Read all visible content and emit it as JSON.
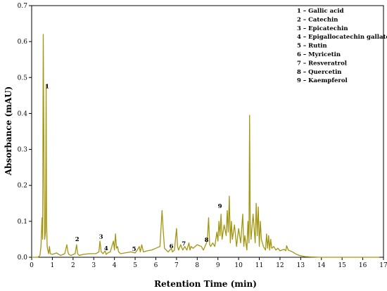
{
  "chart_data": {
    "type": "line",
    "xlabel": "Retention Time (min)",
    "ylabel": "Absorbance (mAU)",
    "xlim": [
      0,
      17
    ],
    "ylim": [
      0,
      0.7
    ],
    "xticks": [
      0,
      1,
      2,
      3,
      4,
      5,
      6,
      7,
      8,
      9,
      10,
      11,
      12,
      13,
      14,
      15,
      16,
      17
    ],
    "yticks": [
      0.0,
      0.1,
      0.2,
      0.3,
      0.4,
      0.5,
      0.6,
      0.7
    ],
    "line_color": "#a39613",
    "grid": false,
    "legend_position": "top-right",
    "legend": [
      "1 – Gallic acid",
      "2 – Catechin",
      "3 – Epicatechin",
      "4 – Epigallocatechin gallate",
      "5 – Rutin",
      "6 – Myricetin",
      "7 – Resveratrol",
      "8 – Quercetin",
      "9 – Kaempferol"
    ],
    "peak_labels": [
      {
        "text": "1",
        "x": 0.75,
        "y": 0.47
      },
      {
        "text": "2",
        "x": 2.2,
        "y": 0.045
      },
      {
        "text": "3",
        "x": 3.35,
        "y": 0.052
      },
      {
        "text": "4",
        "x": 3.6,
        "y": 0.02
      },
      {
        "text": "5",
        "x": 4.95,
        "y": 0.018
      },
      {
        "text": "6",
        "x": 6.75,
        "y": 0.025
      },
      {
        "text": "7",
        "x": 7.35,
        "y": 0.032
      },
      {
        "text": "8",
        "x": 8.45,
        "y": 0.043
      },
      {
        "text": "9",
        "x": 9.1,
        "y": 0.137
      }
    ],
    "series": [
      {
        "x": [
          0,
          0.3,
          0.4,
          0.45,
          0.5,
          0.53,
          0.56,
          0.6,
          0.63,
          0.67,
          0.7,
          0.72,
          0.75,
          0.78,
          0.82,
          0.86,
          0.9,
          1.0,
          1.2,
          1.4,
          1.6,
          1.7,
          1.75,
          1.8,
          1.9,
          2.1,
          2.17,
          2.22,
          2.3,
          2.5,
          2.8,
          3.1,
          3.25,
          3.3,
          3.36,
          3.45,
          3.55,
          3.6,
          3.68,
          3.8,
          3.95,
          4.0,
          4.05,
          4.1,
          4.15,
          4.2,
          4.3,
          4.5,
          4.8,
          5.0,
          5.1,
          5.2,
          5.25,
          5.32,
          5.4,
          5.6,
          5.8,
          6.0,
          6.2,
          6.3,
          6.35,
          6.42,
          6.5,
          6.6,
          6.75,
          6.8,
          6.9,
          7.0,
          7.05,
          7.1,
          7.2,
          7.3,
          7.35,
          7.4,
          7.5,
          7.6,
          7.65,
          7.7,
          7.8,
          8.0,
          8.2,
          8.3,
          8.45,
          8.5,
          8.55,
          8.6,
          8.65,
          8.75,
          8.85,
          8.95,
          9.0,
          9.05,
          9.1,
          9.15,
          9.2,
          9.3,
          9.4,
          9.45,
          9.5,
          9.55,
          9.6,
          9.65,
          9.7,
          9.8,
          9.9,
          10.0,
          10.1,
          10.2,
          10.25,
          10.3,
          10.4,
          10.45,
          10.5,
          10.53,
          10.56,
          10.6,
          10.7,
          10.8,
          10.85,
          10.9,
          10.95,
          11.0,
          11.05,
          11.1,
          11.2,
          11.3,
          11.35,
          11.4,
          11.45,
          11.5,
          11.55,
          11.6,
          11.7,
          11.8,
          11.9,
          12.0,
          12.1,
          12.2,
          12.28,
          12.32,
          12.4,
          12.6,
          12.8,
          13.0,
          13.2,
          13.5,
          14.0,
          15.0,
          16.0,
          16.8
        ],
        "y": [
          0.0,
          0.0,
          0.005,
          0.03,
          0.11,
          0.05,
          0.62,
          0.2,
          0.05,
          0.07,
          0.48,
          0.1,
          0.03,
          0.02,
          0.01,
          0.03,
          0.01,
          0.008,
          0.012,
          0.005,
          0.01,
          0.035,
          0.015,
          0.008,
          0.005,
          0.01,
          0.035,
          0.01,
          0.005,
          0.008,
          0.01,
          0.01,
          0.015,
          0.045,
          0.015,
          0.01,
          0.018,
          0.008,
          0.012,
          0.015,
          0.045,
          0.02,
          0.065,
          0.025,
          0.03,
          0.015,
          0.01,
          0.012,
          0.015,
          0.012,
          0.02,
          0.03,
          0.015,
          0.035,
          0.015,
          0.018,
          0.02,
          0.025,
          0.03,
          0.13,
          0.08,
          0.025,
          0.02,
          0.015,
          0.025,
          0.015,
          0.02,
          0.08,
          0.03,
          0.02,
          0.035,
          0.02,
          0.025,
          0.03,
          0.02,
          0.04,
          0.02,
          0.03,
          0.025,
          0.035,
          0.03,
          0.02,
          0.04,
          0.06,
          0.11,
          0.035,
          0.03,
          0.04,
          0.03,
          0.07,
          0.045,
          0.1,
          0.06,
          0.12,
          0.05,
          0.09,
          0.06,
          0.13,
          0.07,
          0.17,
          0.04,
          0.1,
          0.05,
          0.09,
          0.03,
          0.08,
          0.04,
          0.12,
          0.03,
          0.06,
          0.02,
          0.1,
          0.04,
          0.395,
          0.1,
          0.05,
          0.12,
          0.04,
          0.15,
          0.06,
          0.14,
          0.03,
          0.1,
          0.05,
          0.03,
          0.02,
          0.065,
          0.025,
          0.06,
          0.02,
          0.05,
          0.025,
          0.03,
          0.02,
          0.025,
          0.018,
          0.02,
          0.022,
          0.018,
          0.032,
          0.02,
          0.015,
          0.008,
          0.004,
          0.002,
          0.001,
          0.0,
          0.0,
          0.0,
          0.0
        ]
      }
    ]
  }
}
